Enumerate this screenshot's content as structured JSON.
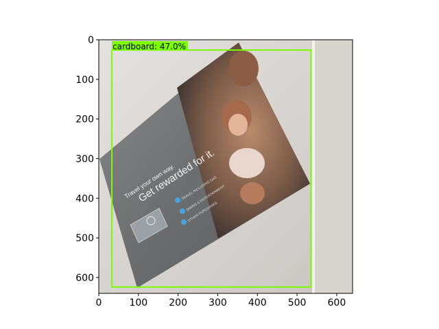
{
  "figure": {
    "x_ticks": [
      "0",
      "100",
      "200",
      "300",
      "400",
      "500",
      "600"
    ],
    "y_ticks": [
      "0",
      "100",
      "200",
      "300",
      "400",
      "500",
      "600"
    ],
    "xlim": [
      0,
      640
    ],
    "ylim": [
      640,
      0
    ]
  },
  "detection": {
    "label": "cardboard: 47.0%",
    "color": "#7cfc00",
    "class_name": "cardboard",
    "score_percent": 47.0,
    "box": {
      "x1": 33,
      "y1": 26,
      "x2": 535,
      "y2": 624
    }
  },
  "photo": {
    "card_line1": "Travel your own way.",
    "card_line2": "Get rewarded for it.",
    "bullets": [
      "TRAVEL INCLUDING GAS",
      "DINING & ENTERTAINMENT",
      "OTHER PURCHASES"
    ]
  }
}
